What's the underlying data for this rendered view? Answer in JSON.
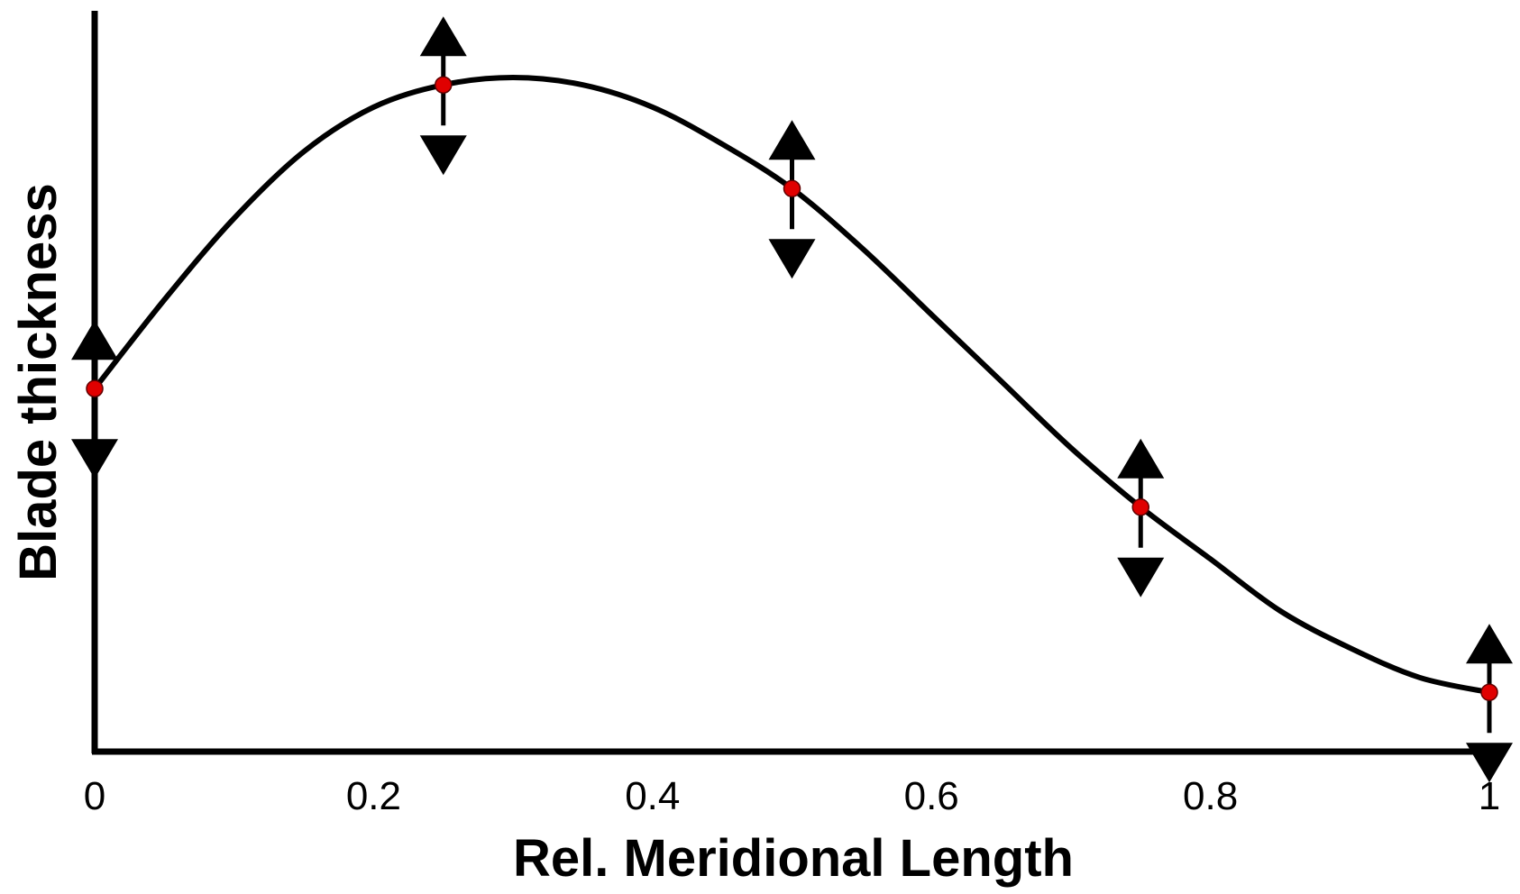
{
  "chart_data": {
    "type": "line",
    "title": "",
    "xlabel": "Rel. Meridional Length",
    "ylabel": "Blade thickness",
    "xlim": [
      0,
      1
    ],
    "ylim": [
      0,
      1
    ],
    "x_ticks": [
      "0",
      "0.2",
      "0.4",
      "0.6",
      "0.8",
      "1"
    ],
    "y_ticks": [],
    "grid": false,
    "legend": "none",
    "control_points": {
      "x": [
        0,
        0.25,
        0.5,
        0.75,
        1
      ],
      "y": [
        0.49,
        0.9,
        0.76,
        0.33,
        0.08
      ]
    },
    "curve": {
      "x": [
        0,
        0.05,
        0.1,
        0.15,
        0.2,
        0.25,
        0.3,
        0.35,
        0.4,
        0.45,
        0.5,
        0.55,
        0.6,
        0.65,
        0.7,
        0.75,
        0.8,
        0.85,
        0.9,
        0.95,
        1
      ],
      "y": [
        0.49,
        0.61,
        0.72,
        0.81,
        0.87,
        0.9,
        0.91,
        0.9,
        0.87,
        0.82,
        0.76,
        0.68,
        0.59,
        0.5,
        0.41,
        0.33,
        0.26,
        0.19,
        0.14,
        0.1,
        0.08
      ]
    },
    "colors": {
      "curve": "#000000",
      "control_point": "#e00000",
      "arrow": "#000000",
      "axis": "#000000"
    }
  }
}
